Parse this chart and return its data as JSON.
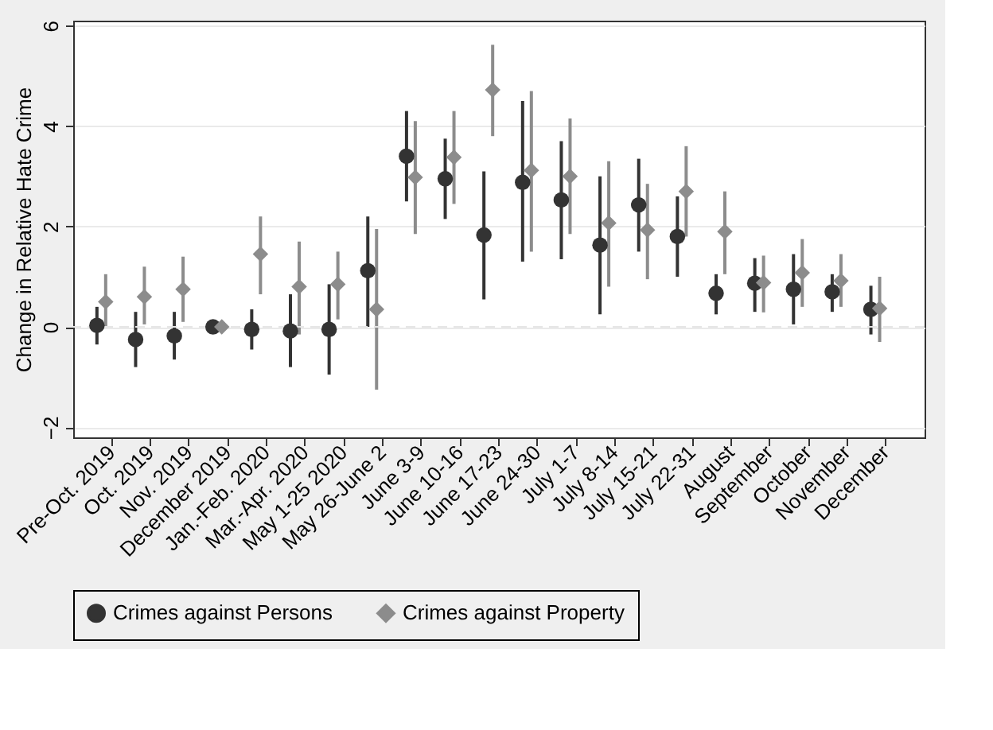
{
  "chart_data": {
    "type": "scatter",
    "ylabel": "Change in Relative Hate Crime",
    "categories": [
      "Pre-Oct. 2019",
      "Oct. 2019",
      "Nov. 2019",
      "December 2019",
      "Jan.-Feb. 2020",
      "Mar.-Apr. 2020",
      "May 1-25 2020",
      "May 26-June 2",
      "June 3-9",
      "June 10-16",
      "June 17-23",
      "June 24-30",
      "July 1-7",
      "July 8-14",
      "July 15-21",
      "July 22-31",
      "August",
      "September",
      "October",
      "November",
      "December"
    ],
    "series": [
      {
        "name": "Crimes against Persons",
        "color": "#333333",
        "marker": "circle",
        "values": [
          0.03,
          -0.25,
          -0.18,
          0,
          -0.05,
          -0.08,
          -0.05,
          1.12,
          3.4,
          2.95,
          1.83,
          2.88,
          2.53,
          1.63,
          2.43,
          1.8,
          0.67,
          0.87,
          0.75,
          0.7,
          0.35
        ],
        "errors": [
          [
            -0.35,
            0.4
          ],
          [
            -0.8,
            0.3
          ],
          [
            -0.65,
            0.3
          ],
          null,
          [
            -0.45,
            0.35
          ],
          [
            -0.8,
            0.65
          ],
          [
            -0.95,
            0.85
          ],
          [
            0,
            2.2
          ],
          [
            2.5,
            4.3
          ],
          [
            2.15,
            3.75
          ],
          [
            0.55,
            3.1
          ],
          [
            1.3,
            4.5
          ],
          [
            1.35,
            3.7
          ],
          [
            0.25,
            3.0
          ],
          [
            1.5,
            3.35
          ],
          [
            1.0,
            2.6
          ],
          [
            0.25,
            1.05
          ],
          [
            0.3,
            1.37
          ],
          [
            0.05,
            1.45
          ],
          [
            0.3,
            1.05
          ],
          [
            -0.15,
            0.82
          ]
        ]
      },
      {
        "name": "Crimes against Property",
        "color": "#8c8c8c",
        "marker": "diamond",
        "values": [
          0.5,
          0.6,
          0.75,
          0,
          1.45,
          0.8,
          0.85,
          0.35,
          2.98,
          3.38,
          4.72,
          3.12,
          3.0,
          2.07,
          1.93,
          2.7,
          1.9,
          0.88,
          1.08,
          0.92,
          0.37
        ],
        "errors": [
          [
            0,
            1.05
          ],
          [
            0.05,
            1.2
          ],
          [
            0.1,
            1.4
          ],
          null,
          [
            0.65,
            2.2
          ],
          [
            -0.15,
            1.7
          ],
          [
            0.15,
            1.5
          ],
          [
            -1.25,
            1.95
          ],
          [
            1.85,
            4.1
          ],
          [
            2.45,
            4.3
          ],
          [
            3.8,
            5.62
          ],
          [
            1.5,
            4.7
          ],
          [
            1.85,
            4.15
          ],
          [
            0.8,
            3.3
          ],
          [
            0.95,
            2.85
          ],
          [
            1.8,
            3.6
          ],
          [
            1.05,
            2.7
          ],
          [
            0.29,
            1.42
          ],
          [
            0.4,
            1.75
          ],
          [
            0.4,
            1.45
          ],
          [
            -0.3,
            1.0
          ]
        ]
      }
    ],
    "ylim": [
      -2.2,
      6.1
    ],
    "yticks": [
      -2,
      0,
      2,
      4,
      6
    ],
    "grid": "y",
    "legend": "bottom",
    "ref_lines": [
      {
        "axis": "y",
        "value": 0,
        "color": "#e6e6e6",
        "line_style": "dashed"
      }
    ]
  }
}
